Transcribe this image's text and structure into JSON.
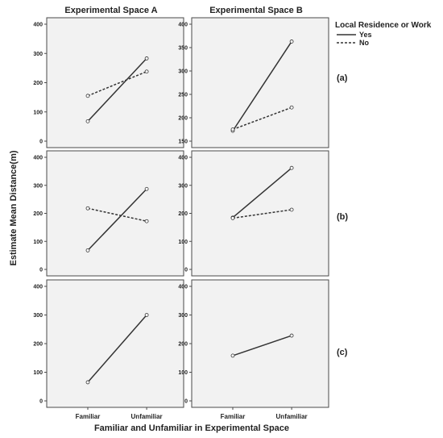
{
  "figure": {
    "col_titles": [
      "Experimental Space A",
      "Experimental Space B"
    ],
    "ylabel": "Estimate Mean Distance(m)",
    "xlabel": "Familiar and Unfamiliar in Experimental Space",
    "row_labels": [
      "(a)",
      "(b)",
      "(c)"
    ],
    "legend": {
      "title": "Local Residence or Work",
      "items": [
        {
          "label": "Yes",
          "style": "solid"
        },
        {
          "label": "No",
          "style": "dashed"
        }
      ]
    }
  },
  "chart_data": [
    {
      "type": "line",
      "row": "(a)",
      "column": "Experimental Space A",
      "categories": [
        "Familiar",
        "Unfamiliar"
      ],
      "ylim": [
        0,
        400
      ],
      "yticks": [
        0,
        100,
        200,
        300,
        400
      ],
      "series": [
        {
          "name": "Yes",
          "values": [
            68,
            283
          ]
        },
        {
          "name": "No",
          "values": [
            155,
            238
          ]
        }
      ]
    },
    {
      "type": "line",
      "row": "(a)",
      "column": "Experimental Space B",
      "categories": [
        "Familiar",
        "Unfamiliar"
      ],
      "ylim": [
        150,
        400
      ],
      "yticks": [
        150,
        200,
        250,
        300,
        350,
        400
      ],
      "series": [
        {
          "name": "Yes",
          "values": [
            172,
            363
          ]
        },
        {
          "name": "No",
          "values": [
            175,
            222
          ]
        }
      ]
    },
    {
      "type": "line",
      "row": "(b)",
      "column": "Experimental Space A",
      "categories": [
        "Familiar",
        "Unfamiliar"
      ],
      "ylim": [
        0,
        400
      ],
      "yticks": [
        0,
        100,
        200,
        300,
        400
      ],
      "series": [
        {
          "name": "Yes",
          "values": [
            68,
            287
          ]
        },
        {
          "name": "No",
          "values": [
            218,
            172
          ]
        }
      ]
    },
    {
      "type": "line",
      "row": "(b)",
      "column": "Experimental Space B",
      "categories": [
        "Familiar",
        "Unfamiliar"
      ],
      "ylim": [
        0,
        400
      ],
      "yticks": [
        0,
        100,
        200,
        300,
        400
      ],
      "series": [
        {
          "name": "Yes",
          "values": [
            185,
            362
          ]
        },
        {
          "name": "No",
          "values": [
            183,
            213
          ]
        }
      ]
    },
    {
      "type": "line",
      "row": "(c)",
      "column": "Experimental Space A",
      "categories": [
        "Familiar",
        "Unfamiliar"
      ],
      "ylim": [
        0,
        400
      ],
      "yticks": [
        0,
        100,
        200,
        300,
        400
      ],
      "series": [
        {
          "name": "Yes",
          "values": [
            65,
            300
          ]
        }
      ]
    },
    {
      "type": "line",
      "row": "(c)",
      "column": "Experimental Space B",
      "categories": [
        "Familiar",
        "Unfamiliar"
      ],
      "ylim": [
        0,
        400
      ],
      "yticks": [
        0,
        100,
        200,
        300,
        400
      ],
      "series": [
        {
          "name": "Yes",
          "values": [
            158,
            228
          ]
        }
      ]
    }
  ]
}
